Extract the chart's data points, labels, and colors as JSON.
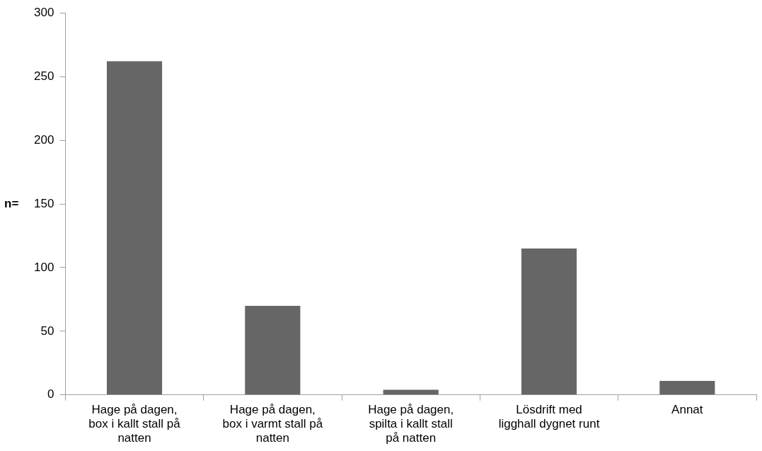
{
  "chart_data": {
    "type": "bar",
    "ylabel": "n=",
    "categories": [
      "Hage på dagen, box i kallt stall på natten",
      "Hage på dagen, box i varmt stall på natten",
      "Hage på dagen, spilta i kallt stall på natten",
      "Lösdrift med ligghall dygnet runt",
      "Annat"
    ],
    "values": [
      262,
      70,
      4,
      115,
      11
    ],
    "color": "#666666",
    "ylim": [
      0,
      300
    ],
    "yticks": [
      0,
      50,
      100,
      150,
      200,
      250,
      300
    ]
  }
}
